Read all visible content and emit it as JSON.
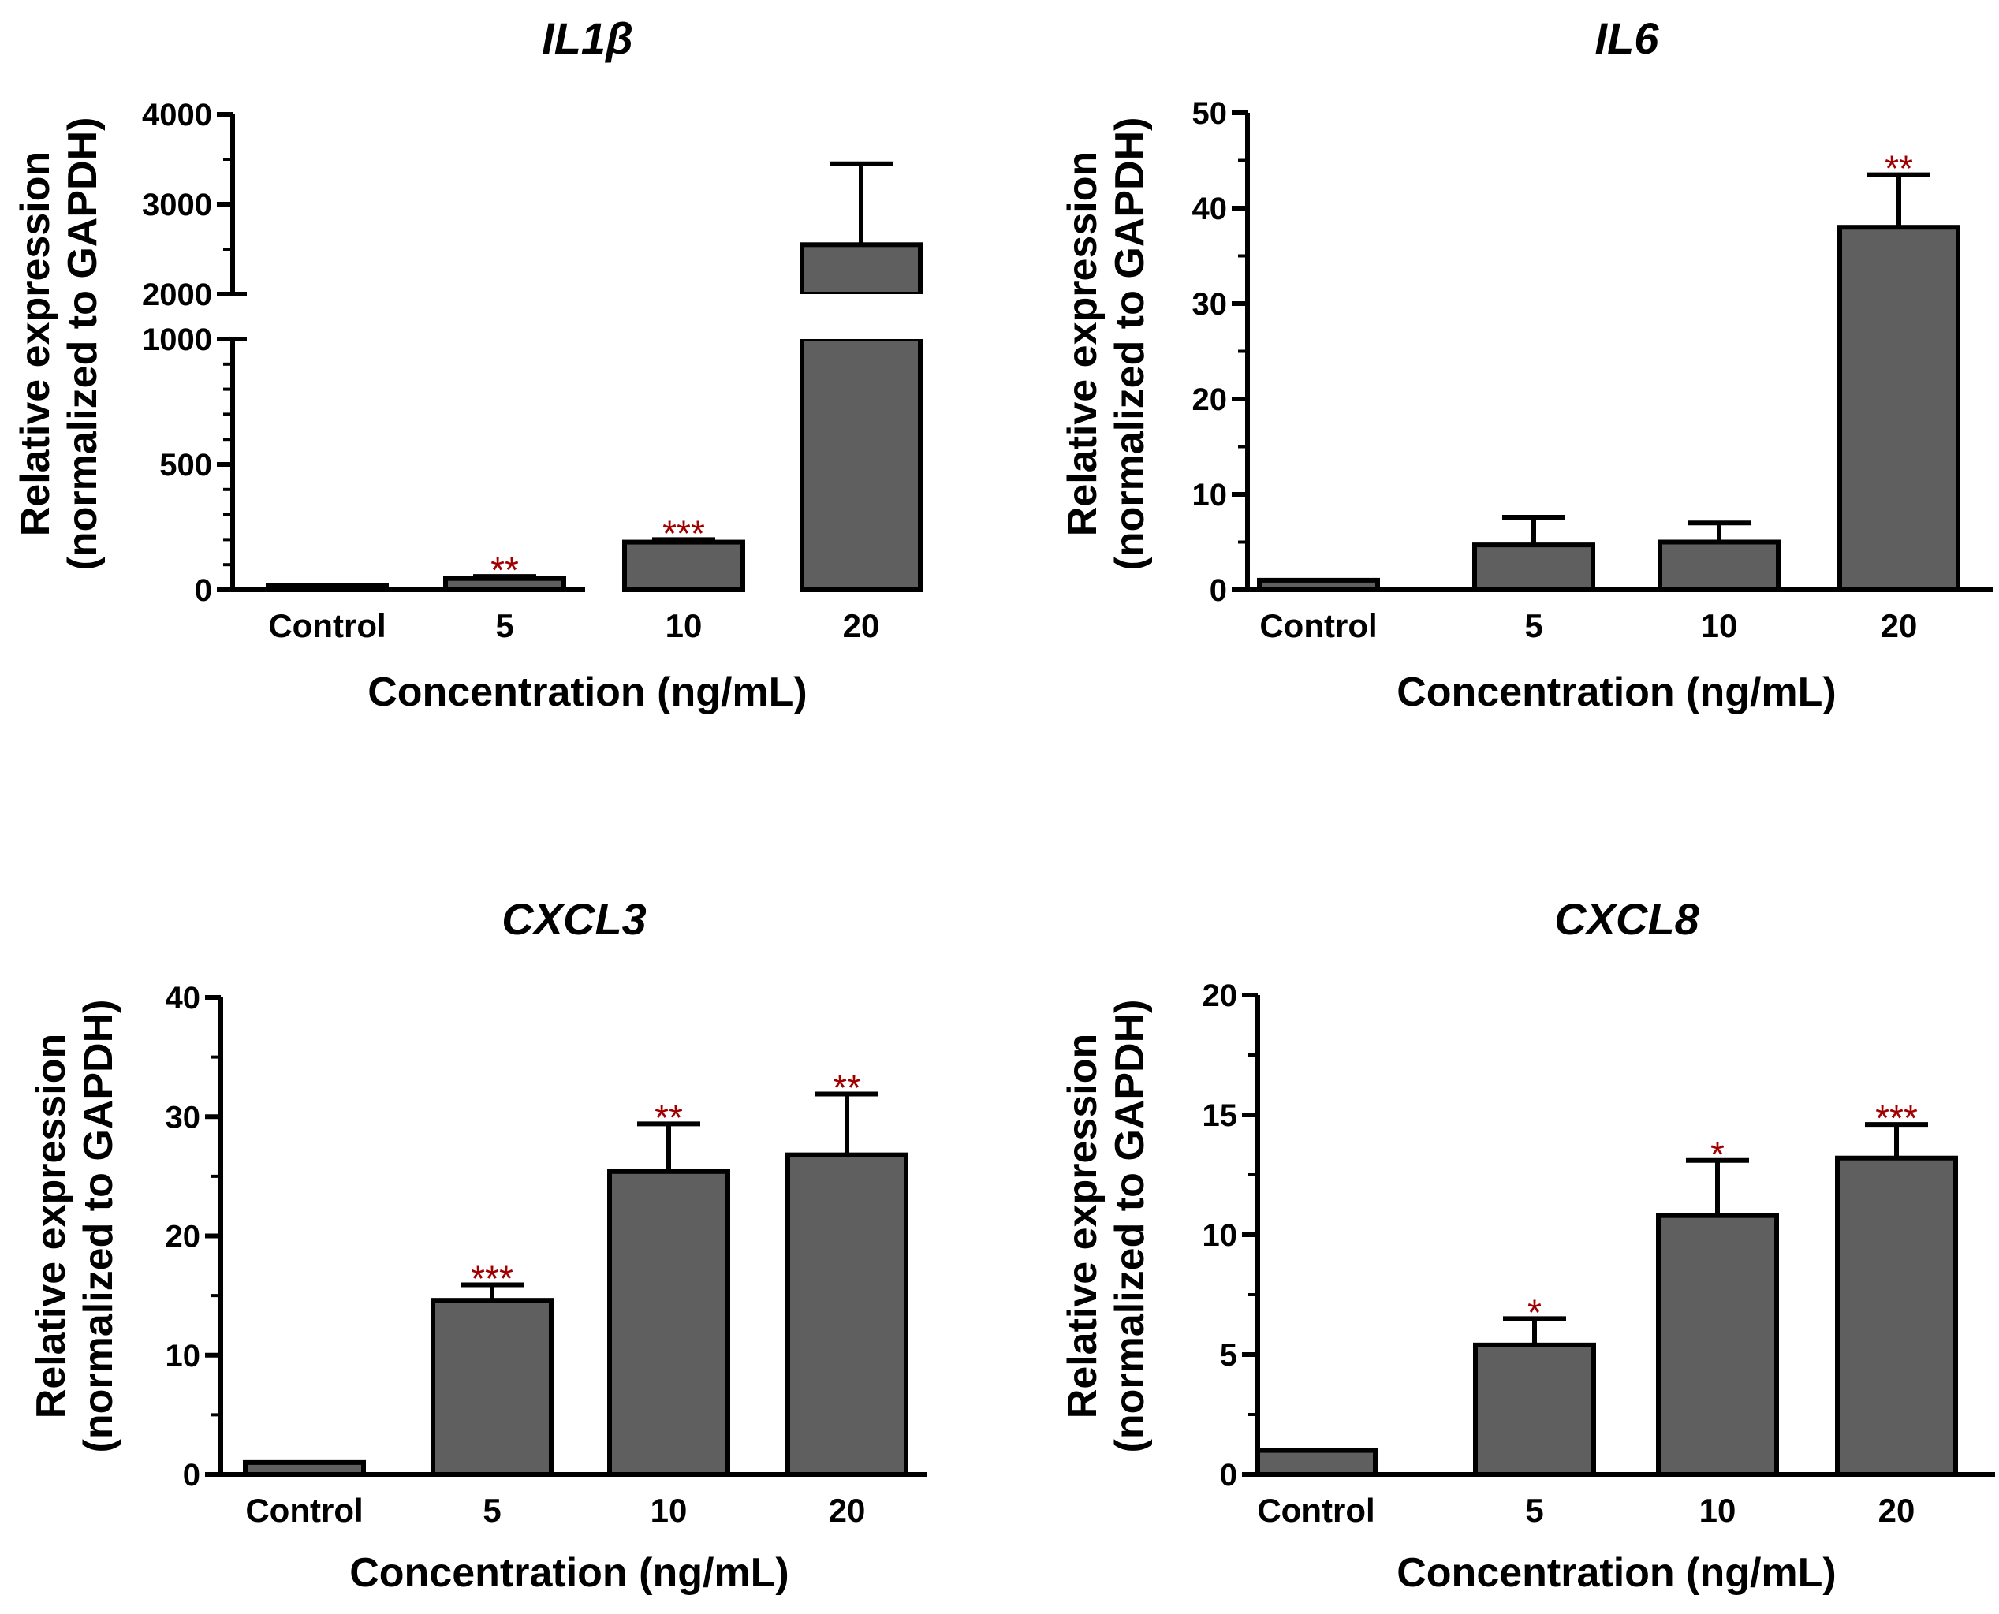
{
  "colors": {
    "bar": "#5f5f5f",
    "stroke": "#000000",
    "significance": "#a00000"
  },
  "chart_data": [
    {
      "type": "bar",
      "title": "IL1β",
      "xlabel": "Concentration (ng/mL)",
      "ylabel_line1": "Relative expression",
      "ylabel_line2": "(normalized to GAPDH)",
      "categories": [
        "Control",
        "5",
        "10",
        "20"
      ],
      "values": [
        1,
        45,
        190,
        2550
      ],
      "errors": [
        0,
        8,
        10,
        900
      ],
      "significance": [
        "",
        "**",
        "***",
        ""
      ],
      "broken_axis": true,
      "ylim_lower": [
        0,
        1000
      ],
      "ylim_upper": [
        2000,
        4000
      ],
      "yticks_lower": [
        "0",
        "500",
        "1000"
      ],
      "yticks_upper": [
        "2000",
        "3000",
        "4000"
      ]
    },
    {
      "type": "bar",
      "title": "IL6",
      "xlabel": "Concentration (ng/mL)",
      "ylabel_line1": "Relative expression",
      "ylabel_line2": "(normalized to GAPDH)",
      "categories": [
        "Control",
        "5",
        "10",
        "20"
      ],
      "values": [
        1,
        4.7,
        5.0,
        38
      ],
      "errors": [
        0,
        2.9,
        2.0,
        5.5
      ],
      "significance": [
        "",
        "",
        "",
        "**"
      ],
      "ylim": [
        0,
        50
      ],
      "yticks": [
        "0",
        "10",
        "20",
        "30",
        "40",
        "50"
      ]
    },
    {
      "type": "bar",
      "title": "CXCL3",
      "xlabel": "Concentration (ng/mL)",
      "ylabel_line1": "Relative expression",
      "ylabel_line2": "(normalized to GAPDH)",
      "categories": [
        "Control",
        "5",
        "10",
        "20"
      ],
      "values": [
        1,
        14.6,
        25.4,
        26.8
      ],
      "errors": [
        0,
        1.3,
        4.0,
        5.1
      ],
      "significance": [
        "",
        "***",
        "**",
        "**"
      ],
      "ylim": [
        0,
        40
      ],
      "yticks": [
        "0",
        "10",
        "20",
        "30",
        "40"
      ]
    },
    {
      "type": "bar",
      "title": "CXCL8",
      "xlabel": "Concentration (ng/mL)",
      "ylabel_line1": "Relative expression",
      "ylabel_line2": "(normalized to GAPDH)",
      "categories": [
        "Control",
        "5",
        "10",
        "20"
      ],
      "values": [
        1,
        5.4,
        10.8,
        13.2
      ],
      "errors": [
        0,
        1.1,
        2.3,
        1.4
      ],
      "significance": [
        "",
        "*",
        "*",
        "***"
      ],
      "ylim": [
        0,
        20
      ],
      "yticks": [
        "0",
        "5",
        "10",
        "15",
        "20"
      ]
    }
  ]
}
